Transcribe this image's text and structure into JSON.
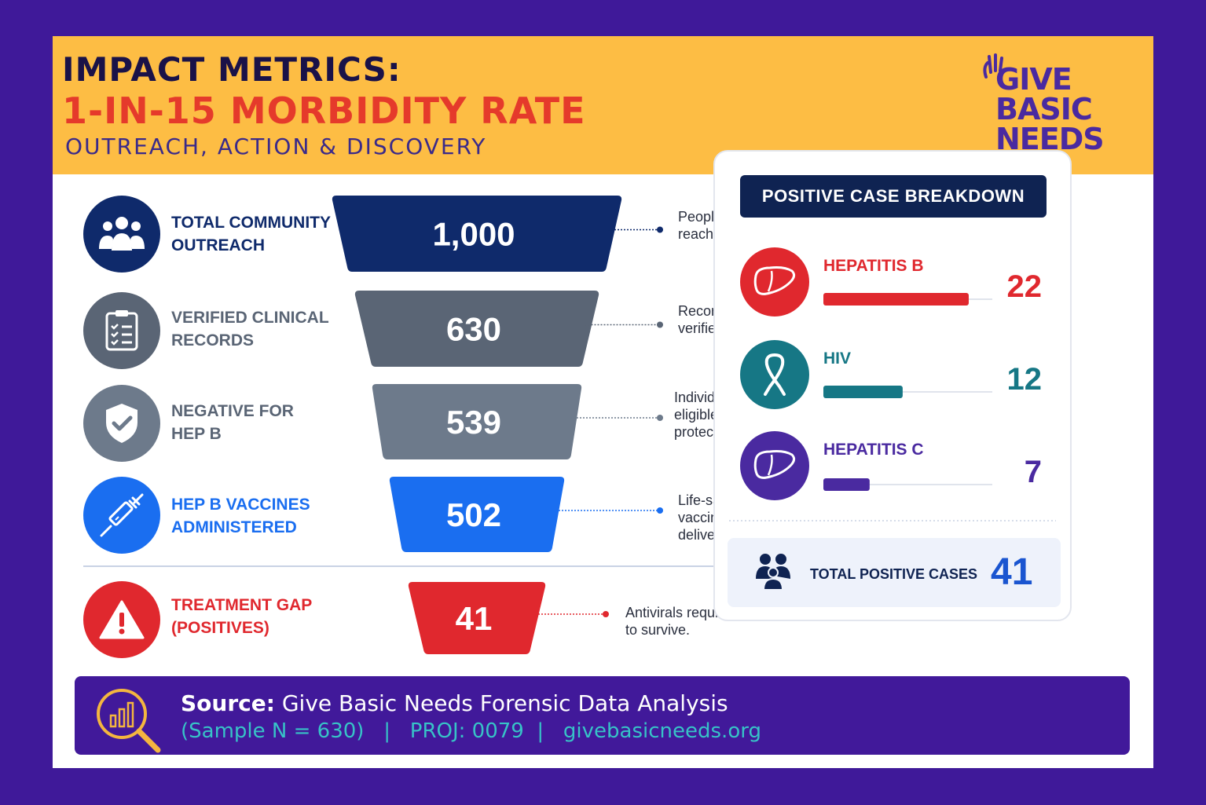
{
  "header": {
    "title_line1": "IMPACT METRICS:",
    "title_line2": "1-IN-15 MORBIDITY RATE",
    "subtitle": "OUTREACH, ACTION & DISCOVERY",
    "logo": "GIVE\nBASIC\nNEEDS"
  },
  "funnel": {
    "stages": [
      {
        "label": "TOTAL COMMUNITY\nOUTREACH",
        "value": 1000,
        "value_text": "1,000",
        "note": "People\nreached",
        "icon": "people-icon",
        "color": "#0f2a6b"
      },
      {
        "label": "VERIFIED CLINICAL\nRECORDS",
        "value": 630,
        "value_text": "630",
        "note": "Records\nverified",
        "icon": "clipboard-icon",
        "color": "#5a6575"
      },
      {
        "label": "NEGATIVE FOR\nHEP B",
        "value": 539,
        "value_text": "539",
        "note": "Individuals\neligible for\nprotection",
        "icon": "shield-check-icon",
        "color": "#6d7a8b"
      },
      {
        "label": "HEP B VACCINES\nADMINISTERED",
        "value": 502,
        "value_text": "502",
        "note": "Life-saving\nvaccines\ndelivered",
        "icon": "syringe-icon",
        "color": "#1a6ef0"
      },
      {
        "label": "TREATMENT GAP\n(POSITIVES)",
        "value": 41,
        "value_text": "41",
        "note": "Antivirals required\nto survive.",
        "icon": "warning-icon",
        "color": "#e0282e"
      }
    ]
  },
  "breakdown": {
    "title": "POSITIVE CASE BREAKDOWN",
    "items": [
      {
        "name": "HEPATITIS B",
        "value": 22,
        "color": "#e0282e",
        "icon": "liver-icon"
      },
      {
        "name": "HIV",
        "value": 12,
        "color": "#167785",
        "icon": "ribbon-icon"
      },
      {
        "name": "HEPATITIS C",
        "value": 7,
        "color": "#4a2aa0",
        "icon": "liver-icon"
      }
    ],
    "total_label": "TOTAL POSITIVE CASES",
    "total_value": "41"
  },
  "chart_data": {
    "type": "bar",
    "title": "IMPACT METRICS: 1-IN-15 MORBIDITY RATE",
    "subtitle": "OUTREACH, ACTION & DISCOVERY",
    "categories": [
      "TOTAL COMMUNITY OUTREACH",
      "VERIFIED CLINICAL RECORDS",
      "NEGATIVE FOR HEP B",
      "HEP B VACCINES ADMINISTERED",
      "TREATMENT GAP (POSITIVES)"
    ],
    "values": [
      1000,
      630,
      539,
      502,
      41
    ],
    "breakdown": {
      "categories": [
        "HEPATITIS B",
        "HIV",
        "HEPATITIS C"
      ],
      "values": [
        22,
        12,
        7
      ],
      "total": 41
    }
  },
  "footer": {
    "source_label": "Source:",
    "source_text": "Give Basic Needs Forensic Data Analysis",
    "details": "(Sample N = 630)   |   PROJ: 0079  |   givebasicneeds.org"
  }
}
